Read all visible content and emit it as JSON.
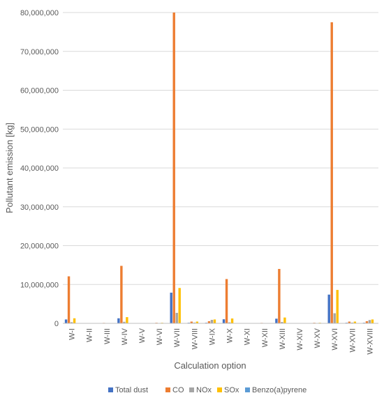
{
  "chart_data": {
    "type": "bar",
    "xlabel": "Calculation option",
    "ylabel": "Pollutant emission [kg]",
    "ylim": [
      0,
      80000000
    ],
    "ytick_step": 10000000,
    "y_tick_labels": [
      "0",
      "10,000,000",
      "20,000,000",
      "30,000,000",
      "40,000,000",
      "50,000,000",
      "60,000,000",
      "70,000,000",
      "80,000,000"
    ],
    "grid": true,
    "legend_position": "bottom",
    "categories": [
      "W-I",
      "W-II",
      "W-III",
      "W-IV",
      "W-V",
      "W-VI",
      "W-VII",
      "W-VIII",
      "W-IX",
      "W-X",
      "W-XI",
      "W-XII",
      "W-XIII",
      "W-XIV",
      "W-XV",
      "W-XVI",
      "W-XVII",
      "W-XVIII"
    ],
    "series": [
      {
        "name": "Total dust",
        "color": "#4472C4",
        "values": [
          1000000,
          20000,
          30000,
          1300000,
          20000,
          50000,
          7900000,
          150000,
          150000,
          1050000,
          20000,
          20000,
          1200000,
          20000,
          50000,
          7400000,
          150000,
          150000
        ]
      },
      {
        "name": "CO",
        "color": "#ED7D31",
        "values": [
          12100000,
          30000,
          120000,
          14800000,
          30000,
          150000,
          82000000,
          450000,
          550000,
          11400000,
          30000,
          120000,
          14000000,
          30000,
          150000,
          77500000,
          450000,
          550000
        ]
      },
      {
        "name": "NOx",
        "color": "#A5A5A5",
        "values": [
          300000,
          10000,
          20000,
          400000,
          10000,
          30000,
          2700000,
          200000,
          900000,
          250000,
          10000,
          20000,
          350000,
          10000,
          30000,
          2600000,
          200000,
          850000
        ]
      },
      {
        "name": "SOx",
        "color": "#FFC000",
        "values": [
          1300000,
          20000,
          60000,
          1600000,
          20000,
          150000,
          9100000,
          450000,
          1000000,
          1250000,
          20000,
          60000,
          1500000,
          20000,
          150000,
          8600000,
          450000,
          1000000
        ]
      },
      {
        "name": "Benzo(a)pyrene",
        "color": "#5B9BD5",
        "values": [
          1,
          0,
          0,
          1,
          0,
          0,
          5,
          0,
          0,
          1,
          0,
          0,
          1,
          0,
          0,
          5,
          0,
          0
        ]
      }
    ]
  }
}
